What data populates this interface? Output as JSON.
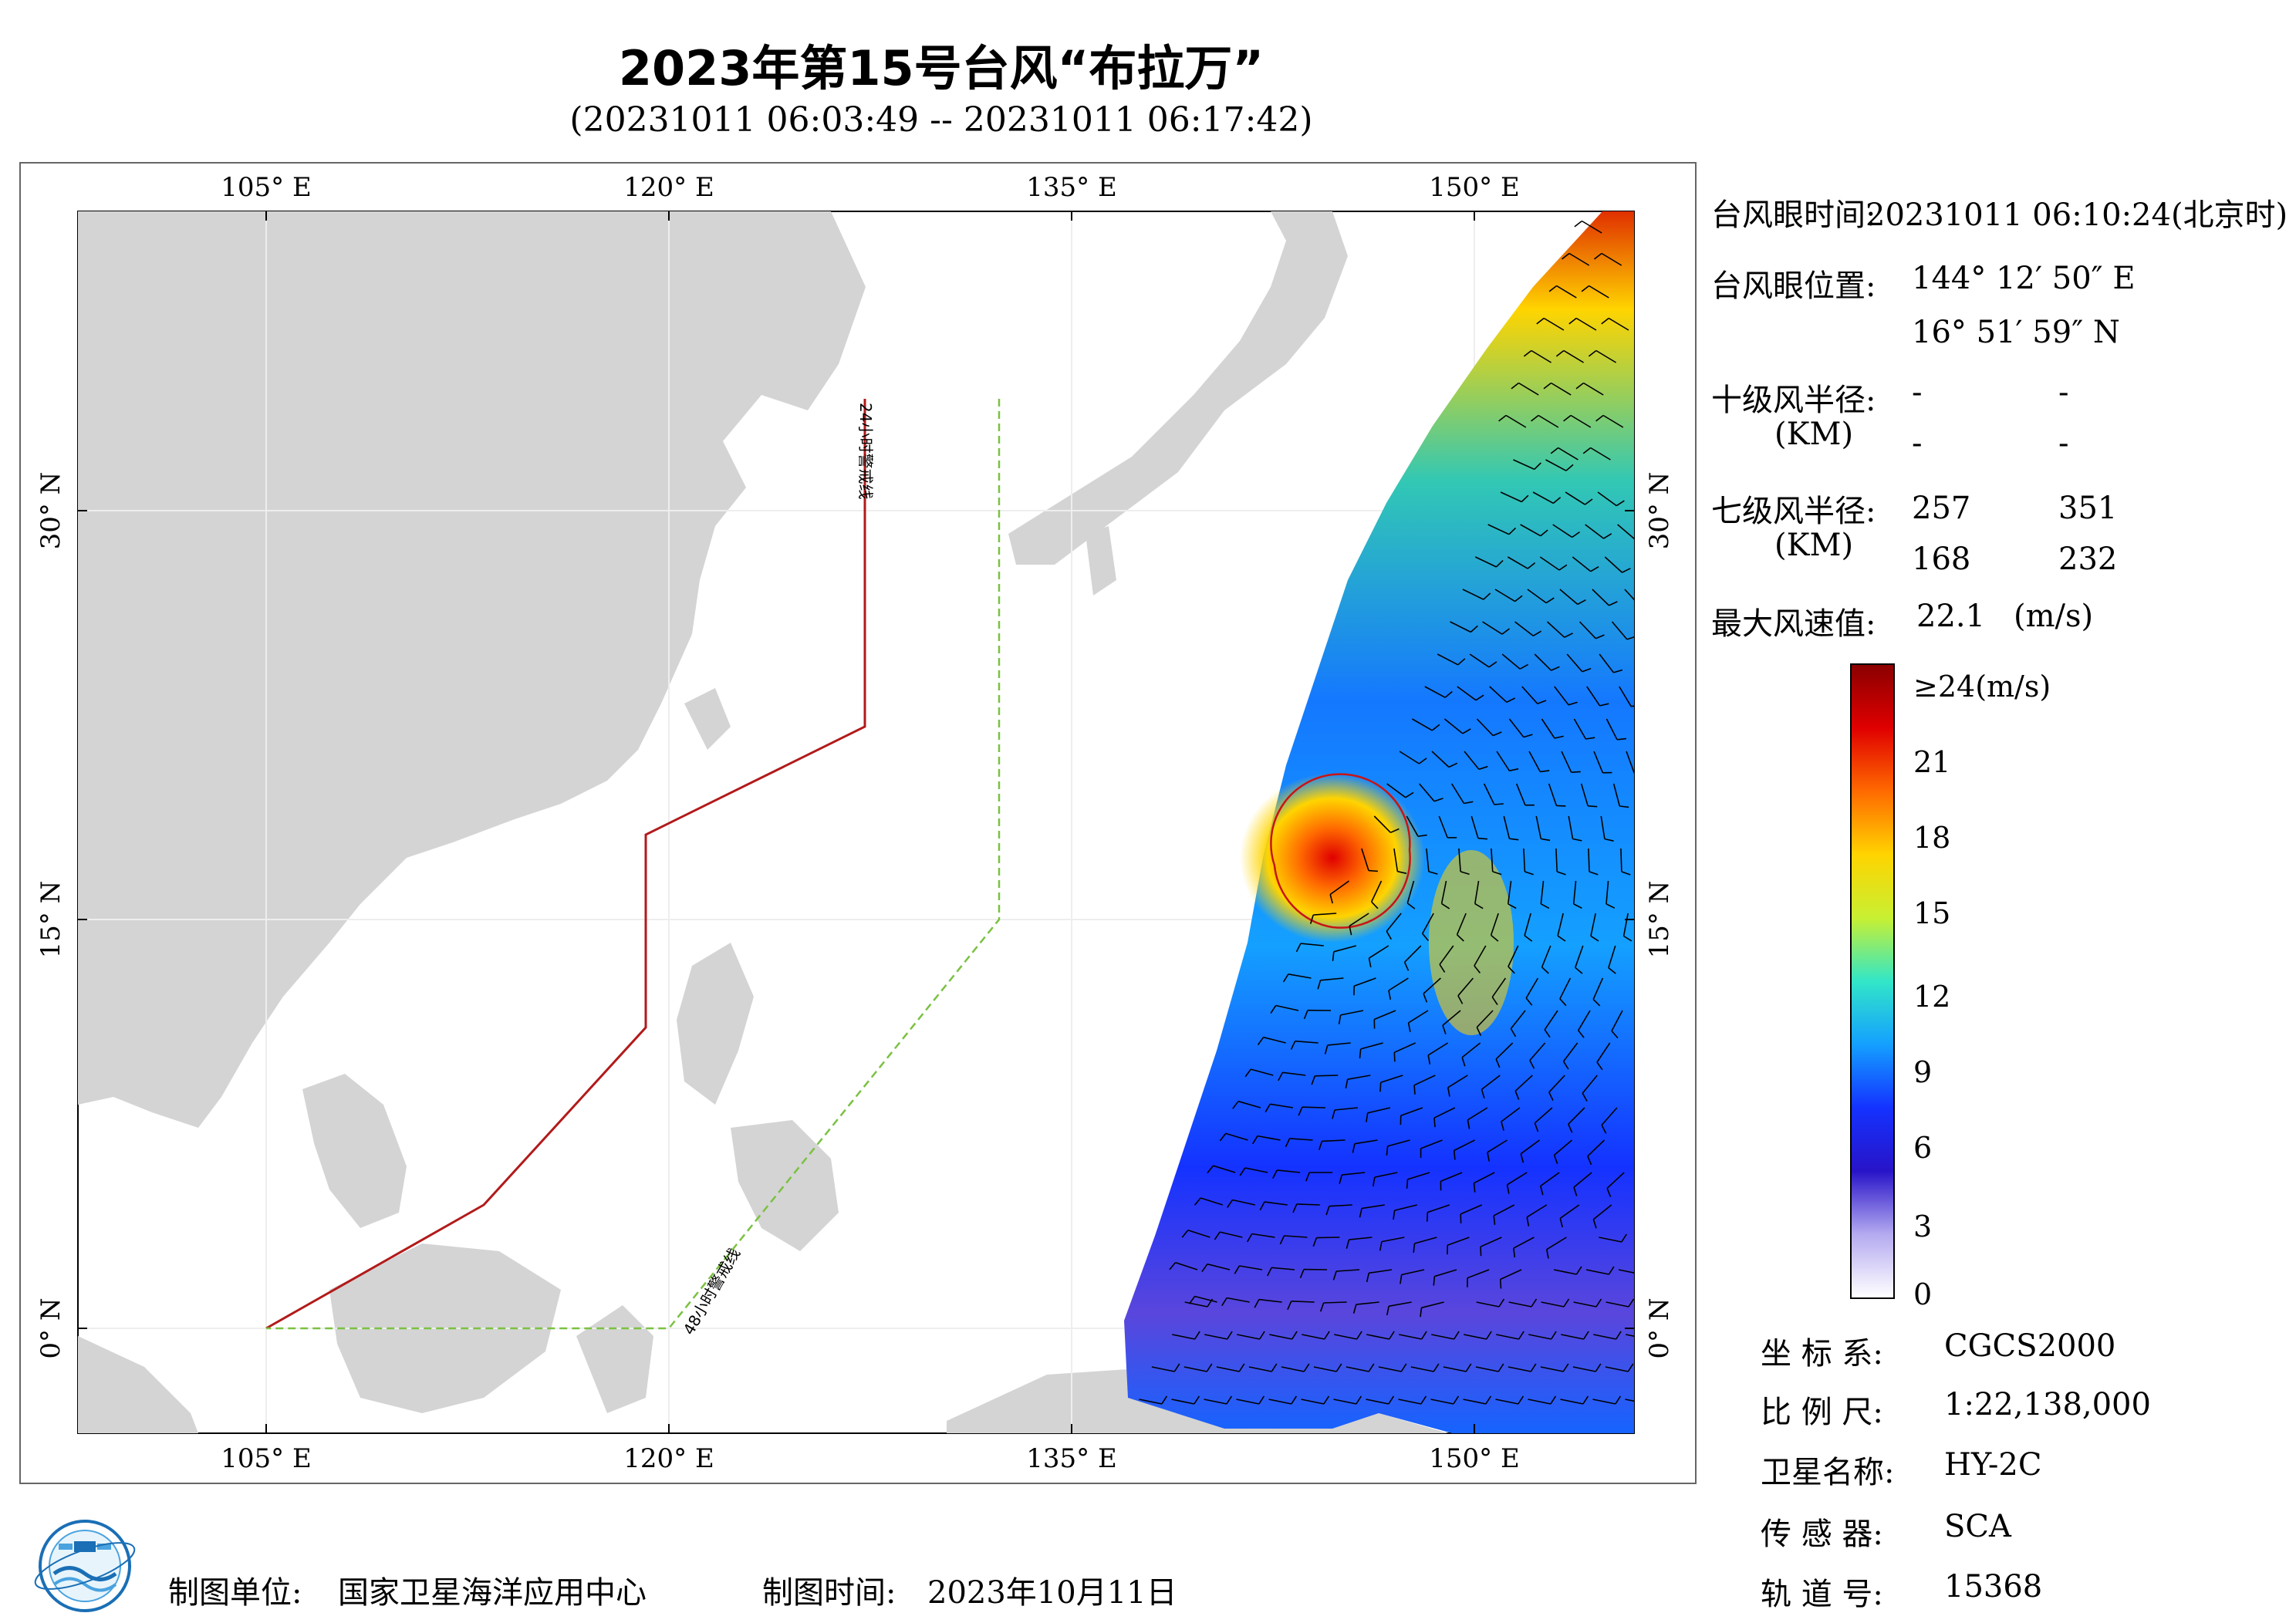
{
  "title": "2023年第15号台风“布拉万”",
  "subtitle": "(20231011 06:03:49 -- 20231011 06:17:42)",
  "map": {
    "lon_ticks": [
      "105° E",
      "120° E",
      "135° E",
      "150° E"
    ],
    "lat_ticks": [
      "30° N",
      "15° N",
      "0° N"
    ],
    "line_24h_label": "24小时警戒线",
    "line_48h_label": "48小时警戒线",
    "colors": {
      "land": "#d4d4d4",
      "ocean": "#ffffff",
      "line_24h": "#b21a1a",
      "line_48h": "#7bc142"
    }
  },
  "info": {
    "eye_time_label": "台风眼时间:",
    "eye_time_value": "20231011 06:10:24(北京时)",
    "eye_pos_label": "台风眼位置:",
    "eye_lon": "144° 12′ 50″ E",
    "eye_lat": "16° 51′ 59″ N",
    "r10_label": "十级风半径:",
    "r10_unit": "(KM)",
    "r10_values": [
      "-",
      "-",
      "-",
      "-"
    ],
    "r7_label": "七级风半径:",
    "r7_unit": "(KM)",
    "r7_values": [
      "257",
      "351",
      "168",
      "232"
    ],
    "max_wind_label": "最大风速值:",
    "max_wind_value": "22.1",
    "max_wind_unit": "(m/s)"
  },
  "colorbar": {
    "labels": [
      "≥24(m/s)",
      "21",
      "18",
      "15",
      "12",
      "9",
      "6",
      "3",
      "0"
    ],
    "stops": [
      "#8b0000",
      "#e00000",
      "#ff6a00",
      "#ffd400",
      "#c8f032",
      "#32e6c8",
      "#14a0ff",
      "#1432ff",
      "#2814c8",
      "#b4aaf0",
      "#ffffff"
    ]
  },
  "meta": {
    "coord_label": "坐 标 系:",
    "coord_value": "CGCS2000",
    "scale_label": "比 例 尺:",
    "scale_value": "1:22,138,000",
    "sat_label": "卫星名称:",
    "sat_value": "HY-2C",
    "sensor_label": "传 感 器:",
    "sensor_value": "SCA",
    "orbit_label": "轨 道 号:",
    "orbit_value": "15368"
  },
  "footer": {
    "producer_label": "制图单位:",
    "producer_value": "国家卫星海洋应用中心",
    "date_label": "制图时间:",
    "date_value": "2023年10月11日"
  }
}
